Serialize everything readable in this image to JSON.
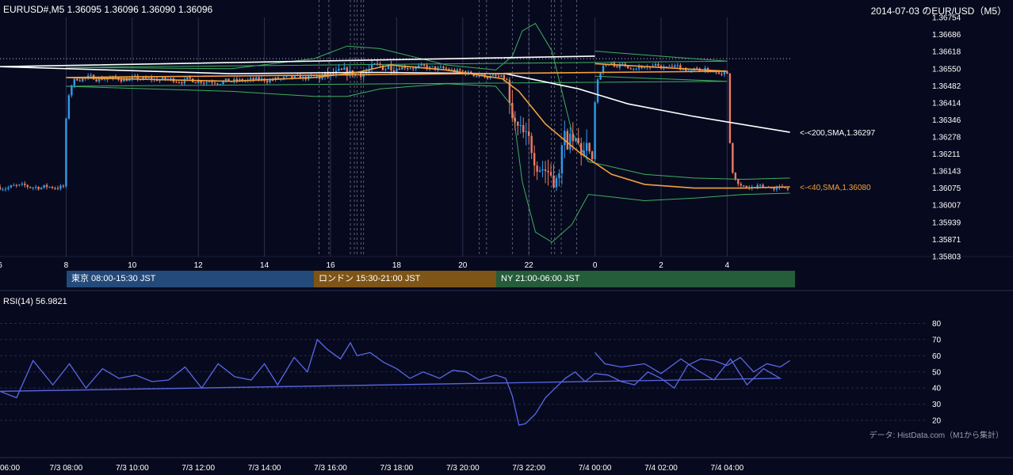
{
  "header": {
    "symbol_info": "EURUSD#,M5 1.36095 1.36096 1.36090 1.36096",
    "title": "2014-07-03 のEUR/USD（M5）"
  },
  "colors": {
    "background": "#070a1e",
    "up": "#2f9bea",
    "down": "#ec7b63",
    "sma200": "#ffffff",
    "sma40": "#f5a03a",
    "bollinger": "#3fae62",
    "rsi": "#5a67e6",
    "session_tokyo": "#234a7a",
    "session_london": "#7e5516",
    "session_ny": "#255c3a"
  },
  "sessions": [
    {
      "label": "東京 08:00-15:30 JST"
    },
    {
      "label": "ロンドン 15:30-21:00 JST"
    },
    {
      "label": "NY 21:00-06:00 JST"
    }
  ],
  "rsi_label": "RSI(14) 56.9821",
  "credit": "データ: HistData.com（M1から集計）",
  "chart_data": {
    "type": "line",
    "price_axis": {
      "ticks": [
        "1.36754",
        "1.36686",
        "1.36618",
        "1.36550",
        "1.36482",
        "1.36414",
        "1.36346",
        "1.36278",
        "1.36211",
        "1.36143",
        "1.36075",
        "1.36007",
        "1.35939",
        "1.35871",
        "1.35803"
      ],
      "ylim": [
        1.35803,
        1.36754
      ]
    },
    "hour_axis_ticks": [
      "6",
      "8",
      "10",
      "12",
      "14",
      "16",
      "18",
      "20",
      "22",
      "0",
      "2",
      "4"
    ],
    "time_axis_ticks": [
      "06:00",
      "7/3 08:00",
      "7/3 10:00",
      "7/3 12:00",
      "7/3 14:00",
      "7/3 16:00",
      "7/3 18:00",
      "7/3 20:00",
      "7/3 22:00",
      "7/4 00:00",
      "7/4 02:00",
      "7/4 04:00"
    ],
    "reference_level": 1.3659,
    "sma200": {
      "label": "<-<200,SMA,1.36297",
      "x": [
        0,
        6,
        13,
        16.7,
        17.6,
        21.3,
        23.5,
        1.0,
        3.0,
        5.9
      ],
      "y": [
        1.366,
        1.36558,
        1.3653,
        1.36535,
        1.36535,
        1.3653,
        1.3647,
        1.3641,
        1.3636,
        1.36297
      ]
    },
    "sma40": {
      "label": "<-<40,SMA,1.36080",
      "x": [
        0,
        4,
        8,
        13,
        15.5,
        16.8,
        17.8,
        19.5,
        21.2,
        21.7,
        22.5,
        23.5,
        0.5,
        1.5,
        3.0,
        4.5,
        5.9
      ],
      "y": [
        1.3657,
        1.3654,
        1.36515,
        1.365,
        1.36515,
        1.36535,
        1.36565,
        1.36545,
        1.3651,
        1.3646,
        1.3633,
        1.3622,
        1.3613,
        1.3609,
        1.36075,
        1.36075,
        1.3608
      ]
    },
    "bollinger_upper": {
      "x": [
        0,
        4,
        8,
        13,
        15.5,
        16.5,
        17.5,
        19.5,
        21.0,
        21.5,
        21.8,
        22.2,
        22.7,
        23.3,
        23.8,
        0.5,
        1.5,
        3.0,
        4.5,
        5.9
      ],
      "y": [
        1.3662,
        1.3658,
        1.36555,
        1.3655,
        1.3659,
        1.3664,
        1.3663,
        1.36565,
        1.36545,
        1.366,
        1.367,
        1.3673,
        1.3662,
        1.363,
        1.3618,
        1.3616,
        1.3613,
        1.36115,
        1.3611,
        1.36115
      ]
    },
    "bollinger_lower": {
      "x": [
        0,
        4,
        8,
        13,
        15.5,
        16.5,
        17.5,
        19.5,
        21.0,
        21.5,
        21.8,
        22.2,
        22.7,
        23.3,
        23.8,
        0.5,
        1.5,
        3.0,
        4.5,
        5.9
      ],
      "y": [
        1.3652,
        1.365,
        1.3648,
        1.3646,
        1.3644,
        1.3644,
        1.3647,
        1.3649,
        1.3648,
        1.364,
        1.361,
        1.359,
        1.3586,
        1.3593,
        1.3605,
        1.3604,
        1.36025,
        1.36035,
        1.3605,
        1.36055
      ]
    },
    "rsi": {
      "axis_ticks": [
        "80",
        "70",
        "60",
        "50",
        "40",
        "30",
        "20"
      ],
      "ylim": [
        10,
        88
      ],
      "x": [
        0,
        0.3,
        0.8,
        1.5,
        2.0,
        2.6,
        3.1,
        3.6,
        4.1,
        4.6,
        5.1,
        5.6,
        6.0,
        6.5,
        7.0,
        7.6,
        8.1,
        8.6,
        9.1,
        9.6,
        10.1,
        10.6,
        11.1,
        11.6,
        12.1,
        12.6,
        13.1,
        13.6,
        14.0,
        14.4,
        14.9,
        15.3,
        15.6,
        15.9,
        16.3,
        16.6,
        16.8,
        17.2,
        17.6,
        18.0,
        18.4,
        18.8,
        19.3,
        19.7,
        20.1,
        20.5,
        21.0,
        21.3,
        21.5,
        21.7,
        21.9,
        22.2,
        22.5,
        22.8,
        23.1,
        23.4,
        23.7,
        0.0,
        0.4,
        0.8,
        1.2,
        1.6,
        2.0,
        2.4,
        2.8,
        3.2,
        3.6,
        4.0,
        4.4,
        4.8,
        5.2,
        5.6,
        5.9
      ],
      "y": [
        62,
        55,
        53,
        55,
        49,
        58,
        51,
        45,
        58,
        42,
        52,
        46,
        38,
        34,
        57,
        42,
        55,
        40,
        52,
        46,
        48,
        44,
        45,
        53,
        40,
        55,
        47,
        45,
        55,
        42,
        59,
        50,
        70,
        64,
        58,
        68,
        60,
        62,
        56,
        52,
        46,
        50,
        46,
        51,
        50,
        45,
        48,
        46,
        35,
        17,
        18,
        24,
        34,
        40,
        46,
        50,
        44,
        49,
        48,
        44,
        42,
        50,
        46,
        40,
        54,
        58,
        57,
        54,
        59,
        50,
        55,
        53,
        57
      ]
    }
  }
}
